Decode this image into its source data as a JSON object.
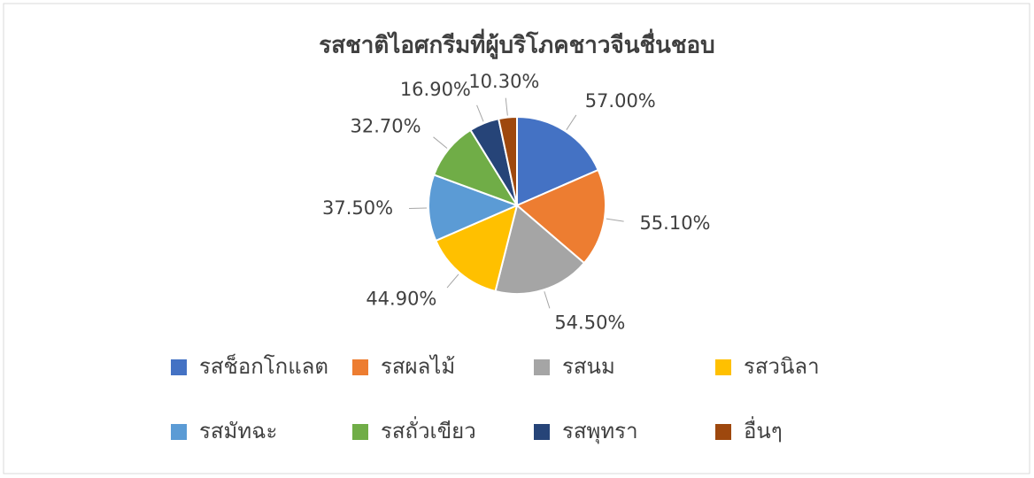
{
  "chart_data": {
    "type": "pie",
    "title": "รสชาติไอศกรีมที่ผู้บริโภคชาวจีนชื่นชอบ",
    "categories": [
      "รสช็อกโกแลต",
      "รสผลไม้",
      "รสนม",
      "รสวนิลา",
      "รสมัทฉะ",
      "รสถั่วเขียว",
      "รสพุทรา",
      "อื่นๆ"
    ],
    "values": [
      57.0,
      55.1,
      54.5,
      44.9,
      37.5,
      32.7,
      16.9,
      10.3
    ],
    "value_labels": [
      "57.00%",
      "55.10%",
      "54.50%",
      "44.90%",
      "37.50%",
      "32.70%",
      "16.90%",
      "10.30%"
    ],
    "colors": [
      "#4472c4",
      "#ed7d31",
      "#a5a5a5",
      "#ffc000",
      "#5b9bd5",
      "#70ad47",
      "#264478",
      "#9e480e"
    ],
    "legend": "bottom"
  }
}
